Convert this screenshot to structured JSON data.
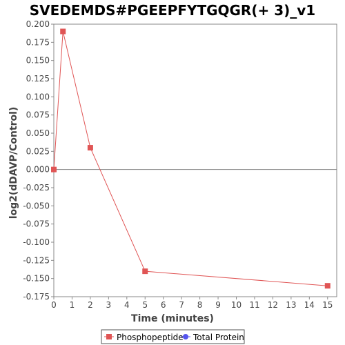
{
  "chart_data": {
    "type": "line",
    "title": "SVEDEMDS#PGEEPFYTGQGR(+ 3)_v1",
    "xlabel": "Time (minutes)",
    "ylabel": "log2(dDAVP/Control)",
    "xlim": [
      0,
      15.5
    ],
    "ylim": [
      -0.175,
      0.2
    ],
    "x_ticks": [
      0,
      1,
      2,
      3,
      4,
      5,
      6,
      7,
      8,
      9,
      10,
      11,
      12,
      13,
      14,
      15
    ],
    "y_ticks": [
      "0.200",
      "0.175",
      "0.150",
      "0.125",
      "0.100",
      "0.075",
      "0.050",
      "0.025",
      "0.000",
      "-0.025",
      "-0.050",
      "-0.075",
      "-0.100",
      "-0.125",
      "-0.150",
      "-0.175"
    ],
    "grid": false,
    "zero_line": true,
    "legend_position": "bottom",
    "series": [
      {
        "name": "Phosphopeptide",
        "color": "#e05555",
        "marker": "square",
        "x": [
          0,
          0.5,
          2,
          5,
          15
        ],
        "y": [
          0.0,
          0.19,
          0.03,
          -0.14,
          -0.16
        ]
      },
      {
        "name": "Total Protein",
        "color": "#5555ee",
        "marker": "circle",
        "x": [],
        "y": []
      }
    ]
  }
}
